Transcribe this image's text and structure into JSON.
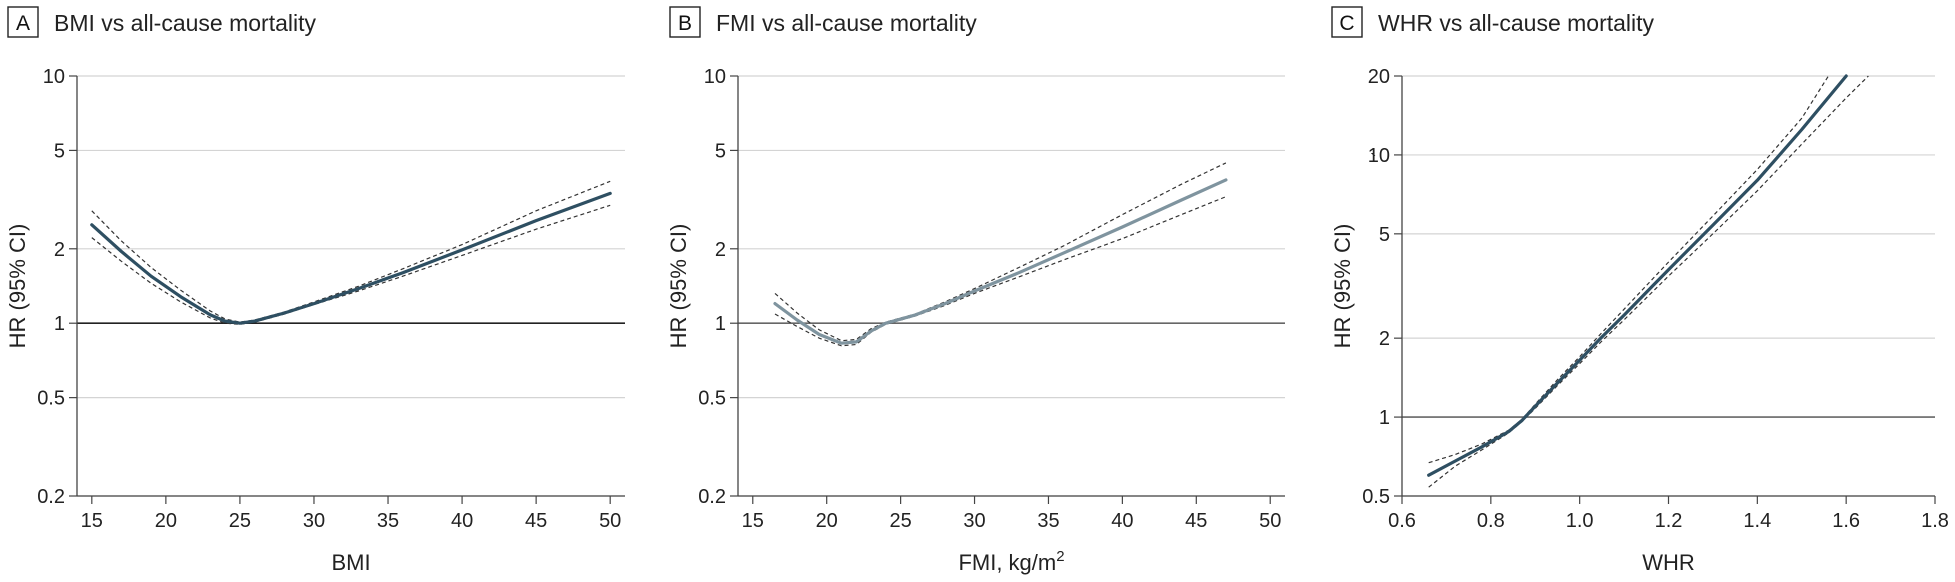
{
  "chart_data": [
    {
      "type": "line",
      "letter": "A",
      "title": "BMI vs all-cause mortality",
      "xlabel": "BMI",
      "ylabel": "HR (95% CI)",
      "xlim": [
        14,
        51
      ],
      "ylim": [
        0.2,
        10
      ],
      "yscale": "log",
      "xticks": [
        "15",
        "20",
        "25",
        "30",
        "35",
        "40",
        "45",
        "50"
      ],
      "yticks": [
        "0.2",
        "0.5",
        "1",
        "2",
        "5",
        "10"
      ],
      "reference_line": 1,
      "colors": {
        "line": "#2e4f62",
        "ci": "#333333",
        "reference": "#222222"
      },
      "series": [
        {
          "x": [
            15,
            17,
            19,
            21,
            23,
            24,
            25,
            26,
            28,
            30,
            33,
            36,
            40,
            45,
            50
          ],
          "y": [
            2.5,
            1.95,
            1.55,
            1.28,
            1.08,
            1.02,
            1.0,
            1.02,
            1.1,
            1.2,
            1.38,
            1.6,
            1.98,
            2.6,
            3.35
          ]
        }
      ],
      "ci_lower": {
        "x": [
          15,
          17,
          19,
          21,
          23,
          24,
          25,
          26,
          28,
          30,
          33,
          36,
          40,
          45,
          50
        ],
        "y": [
          2.22,
          1.78,
          1.45,
          1.22,
          1.05,
          1.0,
          0.99,
          1.01,
          1.09,
          1.19,
          1.35,
          1.55,
          1.88,
          2.4,
          3.0
        ]
      },
      "ci_upper": {
        "x": [
          15,
          17,
          19,
          21,
          23,
          24,
          25,
          26,
          28,
          30,
          33,
          36,
          40,
          45,
          50
        ],
        "y": [
          2.85,
          2.15,
          1.68,
          1.36,
          1.12,
          1.04,
          1.01,
          1.03,
          1.11,
          1.22,
          1.41,
          1.66,
          2.08,
          2.85,
          3.75
        ]
      }
    },
    {
      "type": "line",
      "letter": "B",
      "title": "FMI vs all-cause mortality",
      "xlabel": "FMI, kg/m",
      "xlabel_sup": "2",
      "ylabel": "HR (95% CI)",
      "xlim": [
        14,
        51
      ],
      "ylim": [
        0.2,
        10
      ],
      "yscale": "log",
      "xticks": [
        "15",
        "20",
        "25",
        "30",
        "35",
        "40",
        "45",
        "50"
      ],
      "yticks": [
        "0.2",
        "0.5",
        "1",
        "2",
        "5",
        "10"
      ],
      "reference_line": 1,
      "colors": {
        "line": "#7f949f",
        "ci": "#333333",
        "reference": "#666666"
      },
      "series": [
        {
          "x": [
            16.5,
            18,
            19.5,
            21,
            22,
            23,
            24,
            26,
            28,
            30,
            33,
            36,
            40,
            44,
            47
          ],
          "y": [
            1.2,
            1.03,
            0.9,
            0.83,
            0.84,
            0.93,
            1.0,
            1.08,
            1.2,
            1.35,
            1.6,
            1.92,
            2.45,
            3.15,
            3.8
          ]
        }
      ],
      "ci_lower": {
        "x": [
          16.5,
          18,
          19.5,
          21,
          22,
          23,
          24,
          26,
          28,
          30,
          33,
          36,
          40,
          44,
          47
        ],
        "y": [
          1.09,
          0.97,
          0.87,
          0.81,
          0.82,
          0.92,
          0.99,
          1.07,
          1.18,
          1.32,
          1.54,
          1.8,
          2.2,
          2.75,
          3.25
        ]
      },
      "ci_upper": {
        "x": [
          16.5,
          18,
          19.5,
          21,
          22,
          23,
          24,
          26,
          28,
          30,
          33,
          36,
          40,
          44,
          47
        ],
        "y": [
          1.32,
          1.1,
          0.94,
          0.85,
          0.86,
          0.95,
          1.01,
          1.09,
          1.22,
          1.38,
          1.68,
          2.05,
          2.75,
          3.65,
          4.45
        ]
      }
    },
    {
      "type": "line",
      "letter": "C",
      "title": "WHR vs all-cause mortality",
      "xlabel": "WHR",
      "ylabel": "HR (95% CI)",
      "stray_mark": "`",
      "xlim": [
        0.6,
        1.8
      ],
      "ylim": [
        0.5,
        20
      ],
      "yscale": "log",
      "xticks": [
        "0.6",
        "0.8",
        "1.0",
        "1.2",
        "1.4",
        "1.6",
        "1.8"
      ],
      "yticks": [
        "0.5",
        "1",
        "2",
        "5",
        "10",
        "20"
      ],
      "reference_line": 1,
      "colors": {
        "line": "#2e4f62",
        "ci": "#333333",
        "reference": "#666666"
      },
      "series": [
        {
          "x": [
            0.66,
            0.72,
            0.78,
            0.84,
            0.87,
            0.9,
            0.95,
            1.0,
            1.05,
            1.1,
            1.2,
            1.3,
            1.4,
            1.5,
            1.6
          ],
          "y": [
            0.6,
            0.68,
            0.77,
            0.88,
            0.97,
            1.1,
            1.35,
            1.65,
            2.02,
            2.45,
            3.65,
            5.4,
            8.0,
            12.5,
            20.0
          ]
        }
      ],
      "ci_lower": {
        "x": [
          0.66,
          0.72,
          0.78,
          0.84,
          0.87,
          0.9,
          0.95,
          1.0,
          1.05,
          1.1,
          1.2,
          1.3,
          1.4,
          1.5,
          1.6,
          1.65
        ],
        "y": [
          0.54,
          0.65,
          0.75,
          0.87,
          0.96,
          1.08,
          1.32,
          1.6,
          1.95,
          2.35,
          3.45,
          5.0,
          7.3,
          11.0,
          16.5,
          20.0
        ]
      },
      "ci_upper": {
        "x": [
          0.66,
          0.72,
          0.78,
          0.84,
          0.87,
          0.9,
          0.95,
          1.0,
          1.05,
          1.1,
          1.2,
          1.3,
          1.4,
          1.5,
          1.56
        ],
        "y": [
          0.67,
          0.72,
          0.79,
          0.89,
          0.98,
          1.12,
          1.39,
          1.7,
          2.1,
          2.58,
          3.9,
          5.85,
          8.8,
          13.8,
          20.0
        ]
      }
    }
  ]
}
